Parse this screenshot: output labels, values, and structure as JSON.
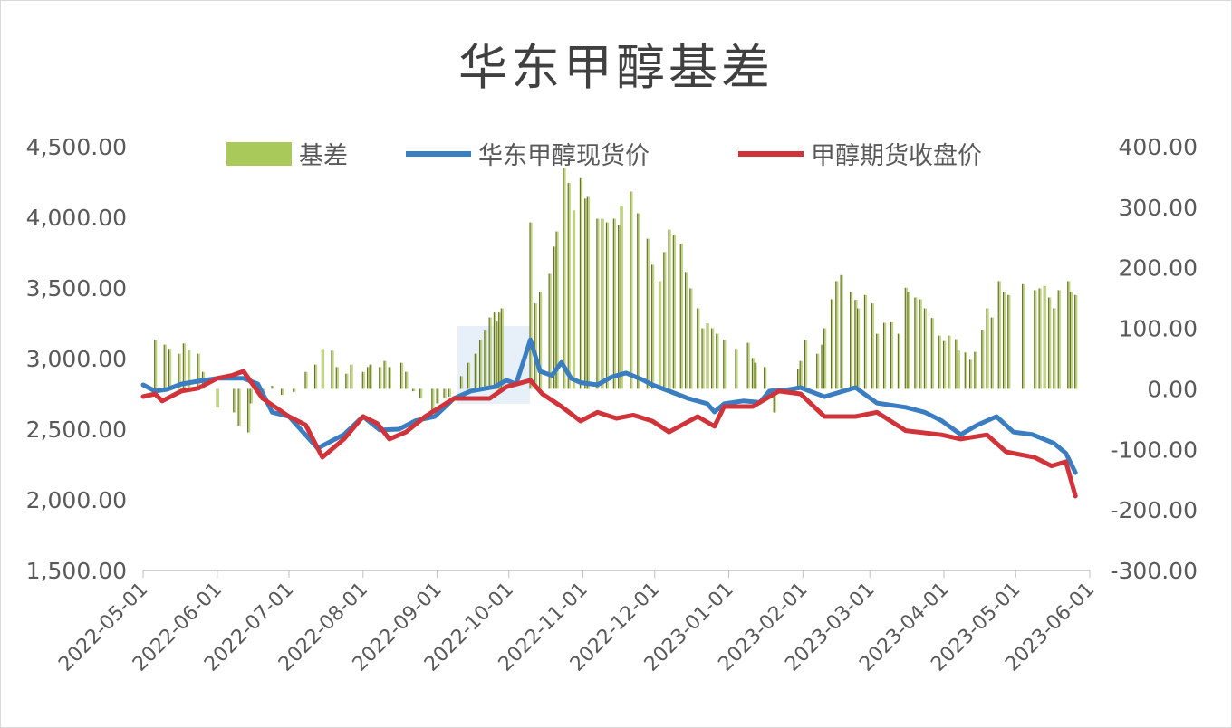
{
  "chart_data": {
    "type": "bar+line",
    "title": "华东甲醇基差",
    "x_origin_date": "2022-05-01",
    "x_unit": "days since 2022-05-01",
    "x_ticks": [
      "2022-05-01",
      "2022-06-01",
      "2022-07-01",
      "2022-08-01",
      "2022-09-01",
      "2022-10-01",
      "2022-11-01",
      "2022-12-01",
      "2023-01-01",
      "2023-02-01",
      "2023-03-01",
      "2023-04-01",
      "2023-05-01",
      "2023-06-01"
    ],
    "left_axis": {
      "min": 1500,
      "max": 4500,
      "step": 500,
      "ticks": [
        "1,500.00",
        "2,000.00",
        "2,500.00",
        "3,000.00",
        "3,500.00",
        "4,000.00",
        "4,500.00"
      ]
    },
    "right_axis": {
      "min": -300,
      "max": 400,
      "step": 100,
      "ticks": [
        "-300.00",
        "-200.00",
        "-100.00",
        "0.00",
        "100.00",
        "200.00",
        "300.00",
        "400.00"
      ]
    },
    "legend_position": "top",
    "series": [
      {
        "name": "基差",
        "type": "bar",
        "axis": "right",
        "color": "#a9c95a",
        "points": [
          [
            5,
            81
          ],
          [
            9,
            73
          ],
          [
            11,
            66
          ],
          [
            15,
            58
          ],
          [
            17,
            75
          ],
          [
            19,
            64
          ],
          [
            23,
            58
          ],
          [
            25,
            28
          ],
          [
            31,
            -31
          ],
          [
            38,
            -39
          ],
          [
            40,
            -61
          ],
          [
            44,
            -72
          ],
          [
            45,
            -24
          ],
          [
            50,
            -8
          ],
          [
            54,
            5
          ],
          [
            58,
            -10
          ],
          [
            63,
            -5
          ],
          [
            68,
            28
          ],
          [
            72,
            40
          ],
          [
            75,
            66
          ],
          [
            79,
            63
          ],
          [
            81,
            36
          ],
          [
            85,
            25
          ],
          [
            87,
            40
          ],
          [
            92,
            28
          ],
          [
            94,
            36
          ],
          [
            95,
            40
          ],
          [
            99,
            36
          ],
          [
            101,
            46
          ],
          [
            103,
            36
          ],
          [
            108,
            43
          ],
          [
            110,
            28
          ],
          [
            113,
            -4
          ],
          [
            116,
            -16
          ],
          [
            121,
            -39
          ],
          [
            123,
            -24
          ],
          [
            126,
            -16
          ],
          [
            128,
            -13
          ],
          [
            133,
            21
          ],
          [
            136,
            43
          ],
          [
            139,
            58
          ],
          [
            141,
            81
          ],
          [
            143,
            96
          ],
          [
            145,
            118
          ],
          [
            147,
            126
          ],
          [
            148,
            111
          ],
          [
            149,
            126
          ],
          [
            150,
            133
          ],
          [
            162,
            275
          ],
          [
            164,
            141
          ],
          [
            166,
            160
          ],
          [
            170,
            190
          ],
          [
            172,
            235
          ],
          [
            173,
            260
          ],
          [
            176,
            365
          ],
          [
            178,
            340
          ],
          [
            180,
            295
          ],
          [
            183,
            348
          ],
          [
            185,
            314
          ],
          [
            186,
            317
          ],
          [
            190,
            281
          ],
          [
            192,
            281
          ],
          [
            194,
            275
          ],
          [
            197,
            281
          ],
          [
            199,
            270
          ],
          [
            200,
            303
          ],
          [
            204,
            326
          ],
          [
            207,
            290
          ],
          [
            211,
            248
          ],
          [
            213,
            205
          ],
          [
            216,
            178
          ],
          [
            218,
            226
          ],
          [
            220,
            263
          ],
          [
            222,
            255
          ],
          [
            225,
            240
          ],
          [
            227,
            193
          ],
          [
            229,
            166
          ],
          [
            232,
            133
          ],
          [
            234,
            100
          ],
          [
            236,
            108
          ],
          [
            238,
            100
          ],
          [
            240,
            91
          ],
          [
            243,
            81
          ],
          [
            248,
            66
          ],
          [
            253,
            76
          ],
          [
            255,
            51
          ],
          [
            256,
            43
          ],
          [
            260,
            36
          ],
          [
            264,
            -39
          ],
          [
            274,
            33
          ],
          [
            275,
            46
          ],
          [
            277,
            81
          ],
          [
            282,
            58
          ],
          [
            284,
            73
          ],
          [
            285,
            100
          ],
          [
            288,
            148
          ],
          [
            290,
            178
          ],
          [
            292,
            188
          ],
          [
            296,
            160
          ],
          [
            298,
            147
          ],
          [
            299,
            133
          ],
          [
            302,
            155
          ],
          [
            305,
            141
          ],
          [
            307,
            91
          ],
          [
            310,
            109
          ],
          [
            313,
            110
          ],
          [
            316,
            91
          ],
          [
            319,
            167
          ],
          [
            320,
            160
          ],
          [
            323,
            151
          ],
          [
            325,
            148
          ],
          [
            327,
            133
          ],
          [
            330,
            117
          ],
          [
            333,
            88
          ],
          [
            335,
            79
          ],
          [
            337,
            88
          ],
          [
            340,
            82
          ],
          [
            341,
            63
          ],
          [
            344,
            60
          ],
          [
            346,
            48
          ],
          [
            348,
            61
          ],
          [
            351,
            97
          ],
          [
            353,
            133
          ],
          [
            355,
            118
          ],
          [
            358,
            178
          ],
          [
            360,
            160
          ],
          [
            362,
            155
          ],
          [
            368,
            173
          ],
          [
            373,
            163
          ],
          [
            375,
            166
          ],
          [
            377,
            170
          ],
          [
            379,
            151
          ],
          [
            381,
            133
          ],
          [
            383,
            163
          ],
          [
            387,
            178
          ],
          [
            388,
            160
          ],
          [
            390,
            155
          ]
        ]
      },
      {
        "name": "华东甲醇现货价",
        "type": "line",
        "axis": "left",
        "color": "#3a7dc0",
        "points": [
          [
            0,
            2814
          ],
          [
            5,
            2770
          ],
          [
            10,
            2782
          ],
          [
            16,
            2820
          ],
          [
            23,
            2840
          ],
          [
            31,
            2860
          ],
          [
            42,
            2860
          ],
          [
            48,
            2820
          ],
          [
            54,
            2620
          ],
          [
            61,
            2590
          ],
          [
            73,
            2365
          ],
          [
            84,
            2462
          ],
          [
            92,
            2590
          ],
          [
            99,
            2494
          ],
          [
            107,
            2500
          ],
          [
            114,
            2560
          ],
          [
            122,
            2590
          ],
          [
            130,
            2718
          ],
          [
            137,
            2770
          ],
          [
            147,
            2800
          ],
          [
            152,
            2846
          ],
          [
            156,
            2820
          ],
          [
            162,
            3134
          ],
          [
            166,
            2910
          ],
          [
            171,
            2880
          ],
          [
            175,
            2974
          ],
          [
            179,
            2860
          ],
          [
            183,
            2830
          ],
          [
            190,
            2814
          ],
          [
            196,
            2870
          ],
          [
            202,
            2898
          ],
          [
            209,
            2850
          ],
          [
            213,
            2814
          ],
          [
            220,
            2770
          ],
          [
            228,
            2718
          ],
          [
            236,
            2680
          ],
          [
            239,
            2622
          ],
          [
            243,
            2680
          ],
          [
            251,
            2700
          ],
          [
            258,
            2690
          ],
          [
            262,
            2770
          ],
          [
            270,
            2780
          ],
          [
            275,
            2795
          ],
          [
            285,
            2730
          ],
          [
            298,
            2795
          ],
          [
            307,
            2685
          ],
          [
            319,
            2655
          ],
          [
            327,
            2620
          ],
          [
            334,
            2560
          ],
          [
            342,
            2462
          ],
          [
            349,
            2530
          ],
          [
            357,
            2590
          ],
          [
            364,
            2480
          ],
          [
            372,
            2462
          ],
          [
            381,
            2400
          ],
          [
            386,
            2330
          ],
          [
            390,
            2192
          ]
        ]
      },
      {
        "name": "甲醇期货收盘价",
        "type": "line",
        "axis": "left",
        "color": "#d0343a",
        "points": [
          [
            0,
            2731
          ],
          [
            5,
            2750
          ],
          [
            8,
            2700
          ],
          [
            16,
            2770
          ],
          [
            23,
            2790
          ],
          [
            31,
            2860
          ],
          [
            37,
            2880
          ],
          [
            42,
            2910
          ],
          [
            50,
            2718
          ],
          [
            61,
            2590
          ],
          [
            68,
            2530
          ],
          [
            75,
            2301
          ],
          [
            84,
            2430
          ],
          [
            92,
            2590
          ],
          [
            98,
            2540
          ],
          [
            103,
            2430
          ],
          [
            110,
            2480
          ],
          [
            118,
            2590
          ],
          [
            130,
            2718
          ],
          [
            145,
            2718
          ],
          [
            152,
            2800
          ],
          [
            162,
            2846
          ],
          [
            167,
            2750
          ],
          [
            175,
            2660
          ],
          [
            183,
            2558
          ],
          [
            190,
            2620
          ],
          [
            198,
            2577
          ],
          [
            205,
            2600
          ],
          [
            213,
            2558
          ],
          [
            220,
            2480
          ],
          [
            232,
            2590
          ],
          [
            239,
            2520
          ],
          [
            243,
            2660
          ],
          [
            255,
            2660
          ],
          [
            266,
            2770
          ],
          [
            275,
            2750
          ],
          [
            285,
            2590
          ],
          [
            298,
            2590
          ],
          [
            307,
            2620
          ],
          [
            319,
            2490
          ],
          [
            334,
            2460
          ],
          [
            342,
            2430
          ],
          [
            353,
            2460
          ],
          [
            361,
            2340
          ],
          [
            373,
            2300
          ],
          [
            380,
            2240
          ],
          [
            386,
            2270
          ],
          [
            390,
            2026
          ]
        ]
      }
    ]
  }
}
